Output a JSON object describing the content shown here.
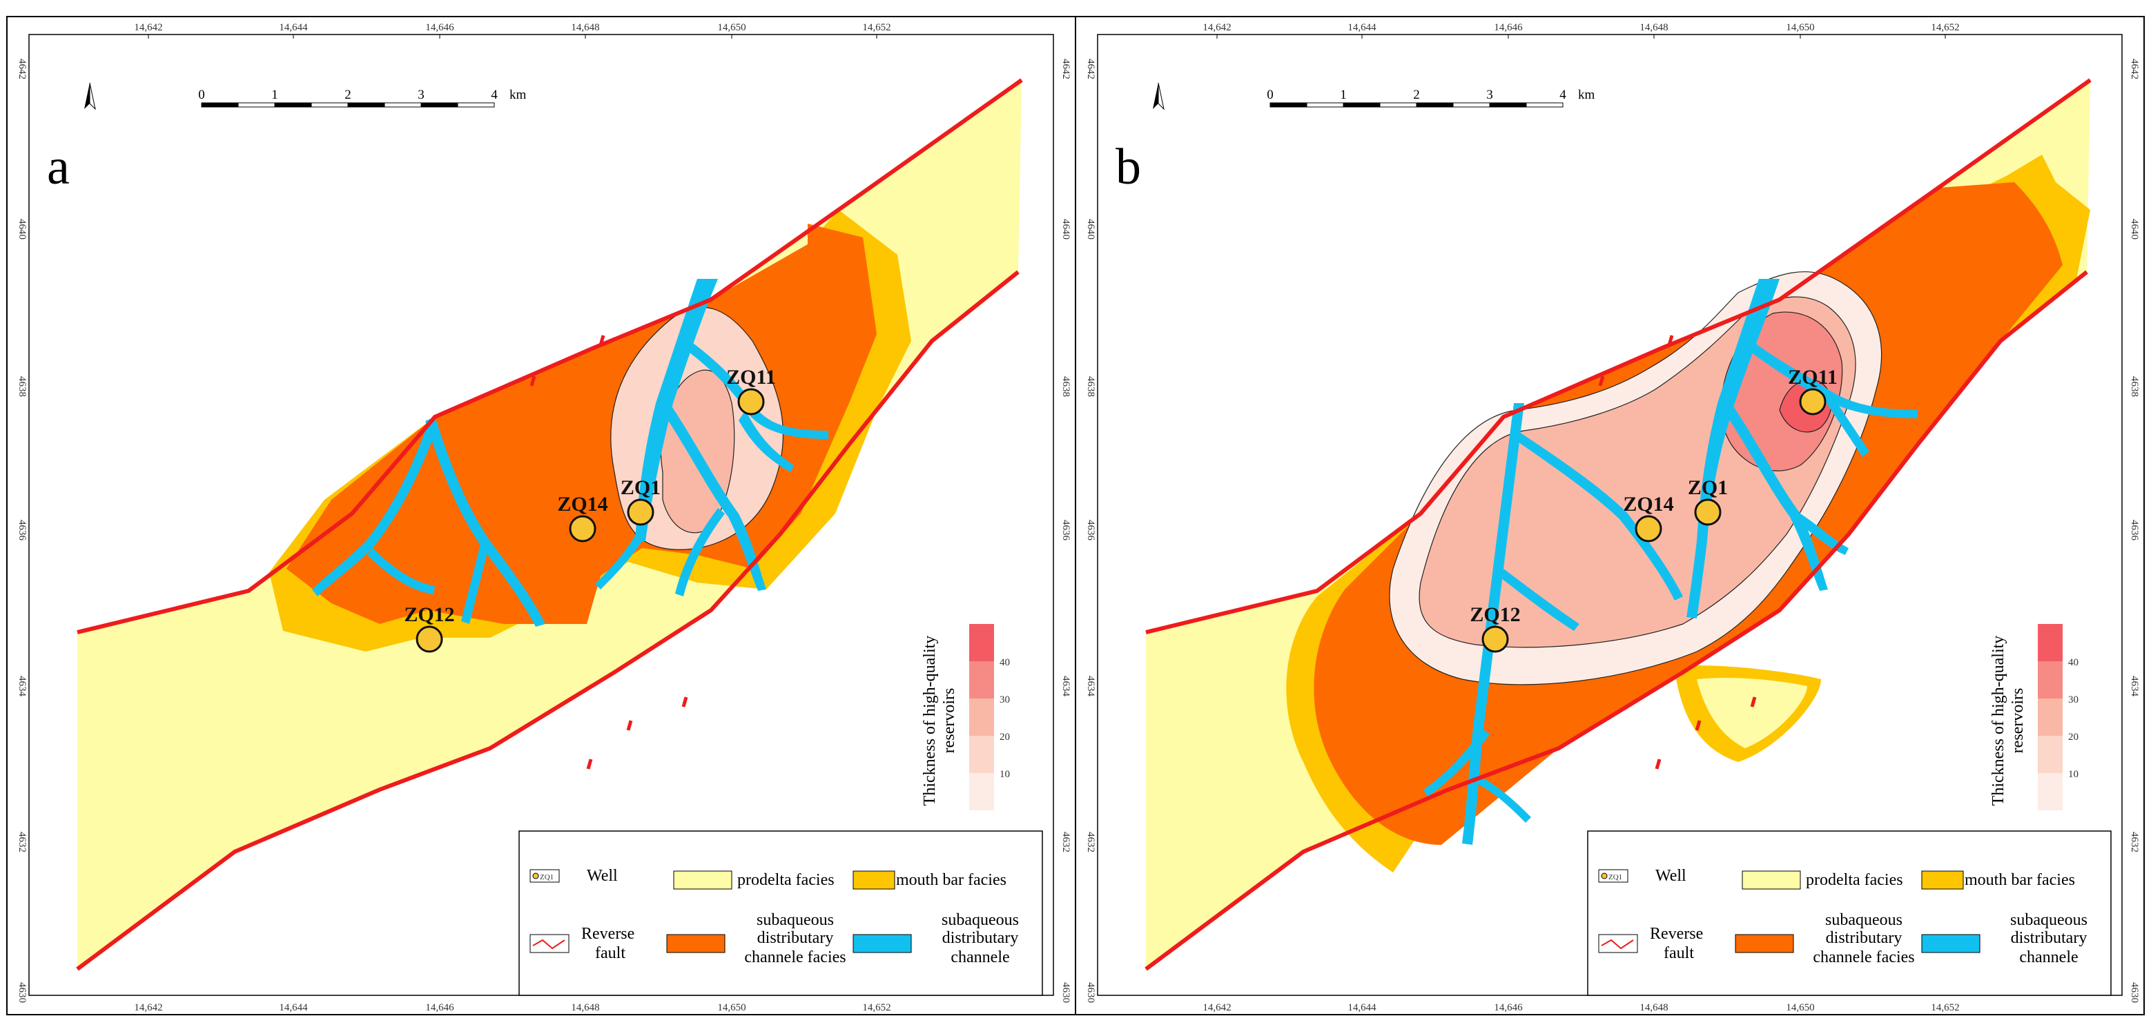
{
  "colors": {
    "prodelta": "#fefca6",
    "mouth_bar": "#fdc600",
    "subaqueous_facies": "#fd6a00",
    "channel": "#12c0f0",
    "fault": "#ee1c1c",
    "well_fill": "#f7c534",
    "thick_1": "#fdece5",
    "thick_2": "#fcd6c8",
    "thick_3": "#f9b8a6",
    "thick_4": "#f68a85",
    "thick_5": "#f35a62"
  },
  "axes": {
    "x_ticks": [
      "14,642",
      "14,644",
      "14,646",
      "14,648",
      "14,650",
      "14,652"
    ],
    "y_ticks": [
      "4642",
      "4640",
      "4638",
      "4636",
      "4634",
      "4632",
      "4630"
    ]
  },
  "scale": {
    "labels": [
      "0",
      "1",
      "2",
      "3",
      "4"
    ],
    "unit": "km"
  },
  "colorbar": {
    "title_line1": "Thickness of  high-quality",
    "title_line2": "reservoirs",
    "ticks": [
      "40",
      "30",
      "20",
      "10"
    ]
  },
  "legend": {
    "well_symbol": "ZQ1",
    "well": "Well",
    "prodelta": "prodelta facies",
    "mouth_bar": "mouth bar facies",
    "fault_line1": "Reverse",
    "fault_line2": "fault",
    "subaq_facies_line1": "subaqueous",
    "subaq_facies_line2": "distributary",
    "subaq_facies_line3": "channele facies",
    "subaq_channel_line1": "subaqueous",
    "subaq_channel_line2": "distributary",
    "subaq_channel_line3": "channele"
  },
  "panels": [
    {
      "letter": "a",
      "wells": [
        {
          "name": "ZQ11"
        },
        {
          "name": "ZQ1"
        },
        {
          "name": "ZQ14"
        },
        {
          "name": "ZQ12"
        }
      ]
    },
    {
      "letter": "b",
      "wells": [
        {
          "name": "ZQ11"
        },
        {
          "name": "ZQ1"
        },
        {
          "name": "ZQ14"
        },
        {
          "name": "ZQ12"
        }
      ]
    }
  ]
}
